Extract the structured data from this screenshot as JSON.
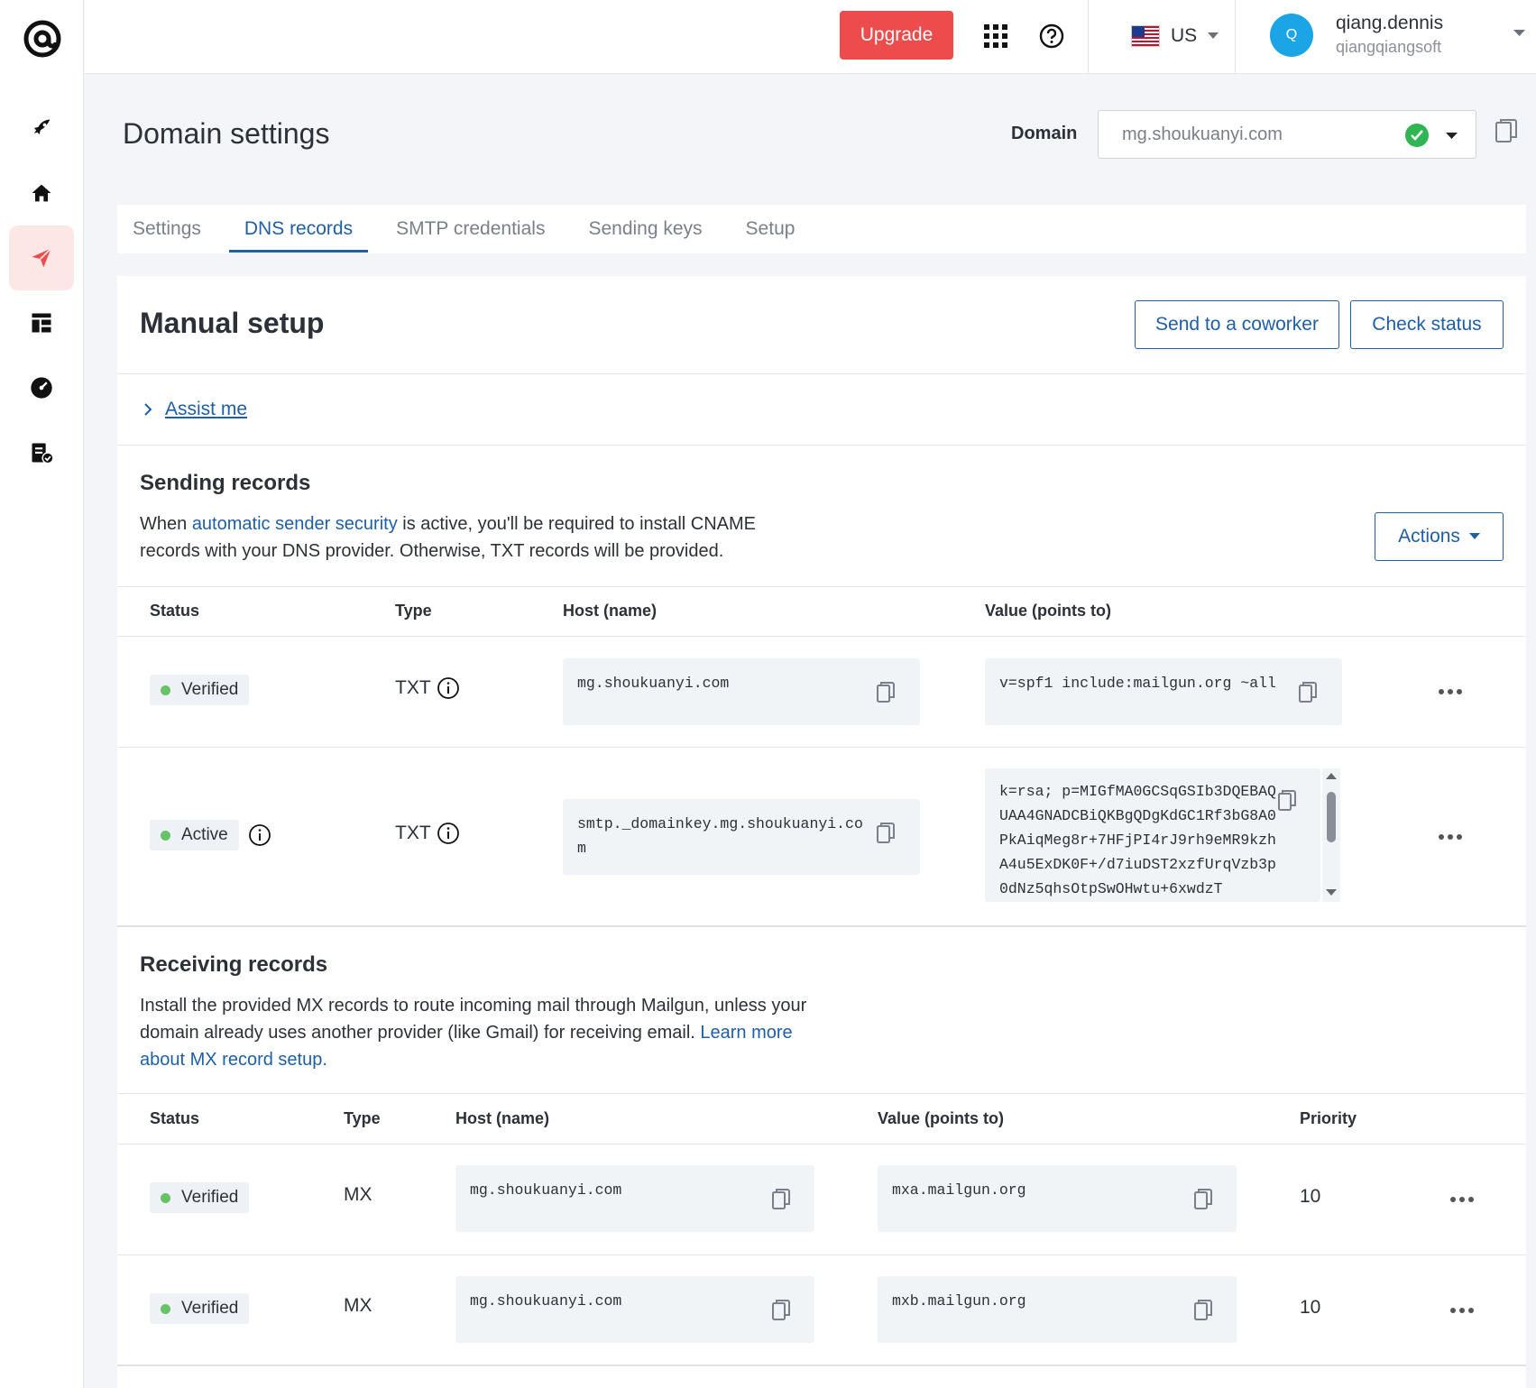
{
  "topbar": {
    "upgrade_label": "Upgrade",
    "region": "US",
    "avatar_initial": "Q",
    "user_name": "qiang.dennis",
    "user_org": "qiangqiangsoft"
  },
  "header": {
    "title": "Domain settings",
    "domain_label": "Domain",
    "domain_value": "mg.shoukuanyi.com"
  },
  "tabs": [
    {
      "label": "Settings"
    },
    {
      "label": "DNS records"
    },
    {
      "label": "SMTP credentials"
    },
    {
      "label": "Sending keys"
    },
    {
      "label": "Setup"
    }
  ],
  "manual_setup": {
    "title": "Manual setup",
    "send_coworker_label": "Send to a coworker",
    "check_status_label": "Check status",
    "assist_label": "Assist me"
  },
  "sending": {
    "title": "Sending records",
    "desc_pre": "When ",
    "desc_link": "automatic sender security",
    "desc_post": " is active, you'll be required to install CNAME records with your DNS provider. Otherwise, TXT records will be provided.",
    "actions_label": "Actions",
    "headers": {
      "status": "Status",
      "type": "Type",
      "host": "Host (name)",
      "value": "Value (points to)"
    },
    "rows": [
      {
        "status": "Verified",
        "type": "TXT",
        "host": "mg.shoukuanyi.com",
        "value": "v=spf1 include:mailgun.org ~all"
      },
      {
        "status": "Active",
        "type": "TXT",
        "host": "smtp._domainkey.mg.shoukuanyi.com",
        "value": "k=rsa; p=MIGfMA0GCSqGSIb3DQEBAQUAA4GNADCBiQKBgQDgKdGC1Rf3bG8A0PkAiqMeg8r+7HFjPI4rJ9rh9eMR9kzhA4u5ExDK0F+/d7iuDST2xzfUrqVzb3p0dNz5qhsOtpSwOHwtu+6xwdzT"
      }
    ]
  },
  "receiving": {
    "title": "Receiving records",
    "desc_pre": "Install the provided MX records to route incoming mail through Mailgun, unless your domain already uses another provider (like Gmail) for receiving email. ",
    "desc_link": "Learn more about MX record setup.",
    "headers": {
      "status": "Status",
      "type": "Type",
      "host": "Host (name)",
      "value": "Value (points to)",
      "priority": "Priority"
    },
    "rows": [
      {
        "status": "Verified",
        "type": "MX",
        "host": "mg.shoukuanyi.com",
        "value": "mxa.mailgun.org",
        "priority": "10"
      },
      {
        "status": "Verified",
        "type": "MX",
        "host": "mg.shoukuanyi.com",
        "value": "mxb.mailgun.org",
        "priority": "10"
      }
    ]
  },
  "colors": {
    "accent": "#1f5fa6",
    "upgrade": "#ee4c4c",
    "verified": "#66c466"
  }
}
